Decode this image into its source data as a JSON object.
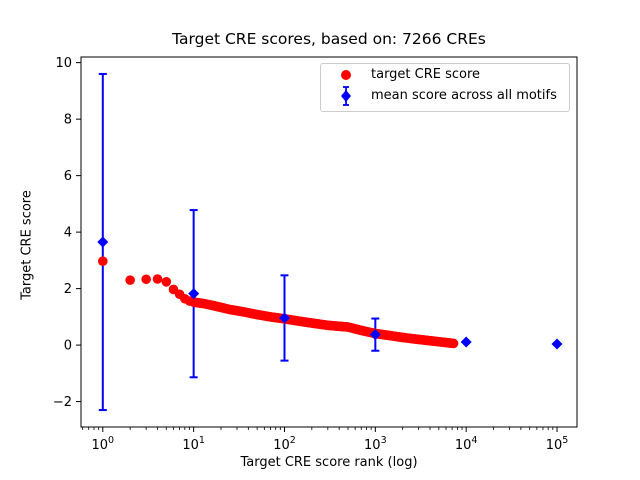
{
  "chart_data": {
    "type": "scatter",
    "title": "Target CRE scores, based on: 7266 CREs",
    "xlabel": "Target CRE score rank (log)",
    "ylabel": "Target CRE score",
    "x_scale": "log",
    "x_tick_exponents": [
      0,
      1,
      2,
      3,
      4,
      5
    ],
    "y_ticks": [
      -2,
      0,
      2,
      4,
      6,
      8,
      10
    ],
    "xlim_log10": [
      -0.24,
      5.22
    ],
    "ylim": [
      -2.9,
      10.2
    ],
    "grid": false,
    "legend_position": "upper right",
    "colors": {
      "red": "#ff0000",
      "blue": "#0000ff",
      "frame": "#000000",
      "legend_border": "#cccccc"
    },
    "series": [
      {
        "name": "target CRE score",
        "color": "#ff0000",
        "marker": "circle",
        "style": "dense rank-ordered curve of 7266 points, sampled control points [rank, score]",
        "points_rank_score": [
          [
            1,
            2.97
          ],
          [
            2,
            2.3
          ],
          [
            3,
            2.33
          ],
          [
            4,
            2.34
          ],
          [
            5,
            2.24
          ],
          [
            6,
            1.97
          ],
          [
            7,
            1.8
          ],
          [
            8,
            1.64
          ],
          [
            9,
            1.56
          ],
          [
            10,
            1.52
          ],
          [
            13,
            1.47
          ],
          [
            18,
            1.37
          ],
          [
            25,
            1.26
          ],
          [
            35,
            1.18
          ],
          [
            50,
            1.08
          ],
          [
            70,
            1.0
          ],
          [
            100,
            0.93
          ],
          [
            150,
            0.84
          ],
          [
            200,
            0.78
          ],
          [
            300,
            0.7
          ],
          [
            500,
            0.64
          ],
          [
            700,
            0.52
          ],
          [
            1000,
            0.41
          ],
          [
            1500,
            0.33
          ],
          [
            2000,
            0.27
          ],
          [
            3000,
            0.2
          ],
          [
            5000,
            0.12
          ],
          [
            7266,
            0.06
          ]
        ]
      },
      {
        "name": "mean score across all motifs",
        "color": "#0000ff",
        "marker": "diamond",
        "error_bars": true,
        "points_rank_mean_std": [
          [
            1,
            3.65,
            5.95
          ],
          [
            10,
            1.82,
            2.96
          ],
          [
            100,
            0.96,
            1.51
          ],
          [
            1000,
            0.37,
            0.57
          ],
          [
            10000,
            0.11,
            0
          ],
          [
            100000,
            0.04,
            0
          ]
        ]
      }
    ]
  }
}
